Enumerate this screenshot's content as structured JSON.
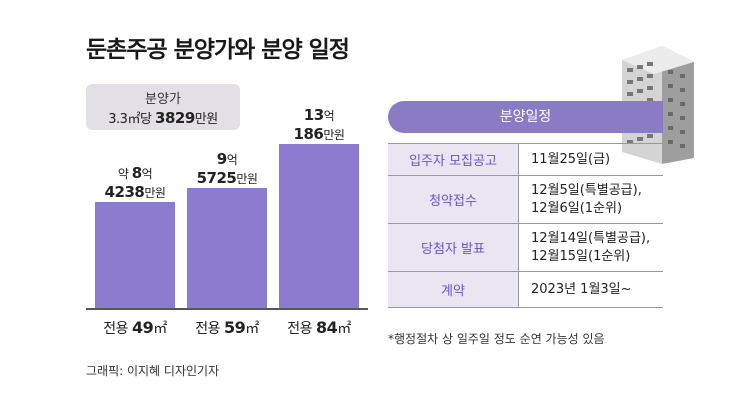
{
  "title": "둔촌주공 분양가와 분양 일정",
  "price_box": {
    "label": "분양가",
    "prefix": "3.3㎡당 ",
    "value": "3829",
    "unit": "만원"
  },
  "colors": {
    "bar": "#8c7bcf",
    "header": "#8a7bc4",
    "key_bg": "#e9e6f1",
    "key_text": "#6a55c8"
  },
  "chart_data": {
    "type": "bar",
    "title": "분양가",
    "unit": "만원",
    "categories": [
      "전용 49㎡",
      "전용 59㎡",
      "전용 84㎡"
    ],
    "values": [
      84238,
      95725,
      130186
    ],
    "ylim": [
      0,
      140000
    ],
    "data_labels": [
      {
        "l1_pre": "약 ",
        "l1_big": "8",
        "l1_post": "억",
        "l2_big": "4238",
        "l2_post": "만원"
      },
      {
        "l1_pre": "",
        "l1_big": "9",
        "l1_post": "억",
        "l2_big": "5725",
        "l2_post": "만원"
      },
      {
        "l1_pre": "",
        "l1_big": "13",
        "l1_post": "억",
        "l2_big": "186",
        "l2_post": "만원"
      }
    ],
    "x_labels": [
      {
        "pre": "전용 ",
        "num": "49",
        "unit": "㎡"
      },
      {
        "pre": "전용 ",
        "num": "59",
        "unit": "㎡"
      },
      {
        "pre": "전용 ",
        "num": "84",
        "unit": "㎡"
      }
    ]
  },
  "schedule": {
    "header": "분양일정",
    "rows": [
      {
        "key": "입주자 모집공고",
        "values": [
          "11월25일(금)"
        ]
      },
      {
        "key": "청약접수",
        "values": [
          "12월5일(특별공급),",
          "12월6일(1순위)"
        ]
      },
      {
        "key": "당첨자 발표",
        "values": [
          "12월14일(특별공급),",
          "12월15일(1순위)"
        ]
      },
      {
        "key": "계약",
        "values": [
          "2023년 1월3일~"
        ]
      }
    ],
    "footnote": "*행정절차 상 일주일 정도 순연 가능성 있음"
  },
  "credit": "그래픽: 이지혜 디자인기자"
}
